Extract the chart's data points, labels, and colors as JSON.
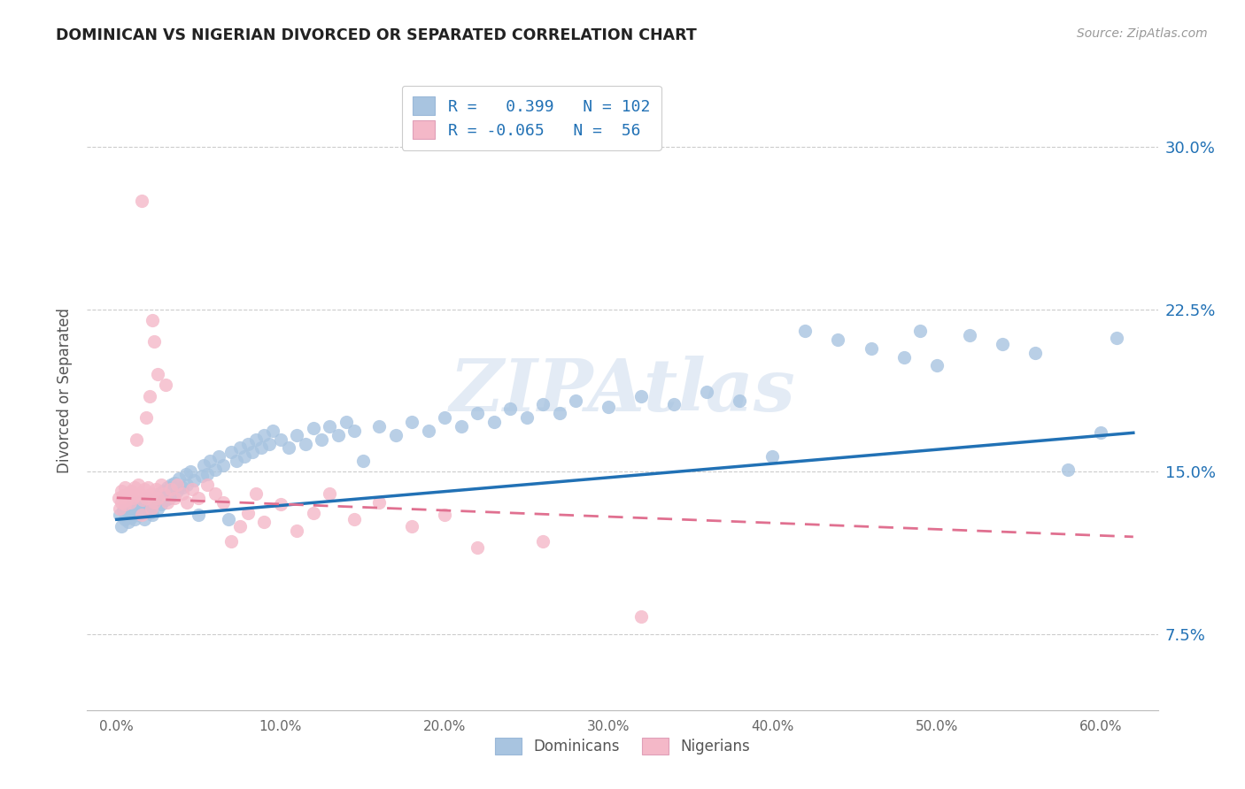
{
  "title": "DOMINICAN VS NIGERIAN DIVORCED OR SEPARATED CORRELATION CHART",
  "source": "Source: ZipAtlas.com",
  "ylabel": "Divorced or Separated",
  "ytick_labels": [
    "7.5%",
    "15.0%",
    "22.5%",
    "30.0%"
  ],
  "ytick_vals": [
    0.075,
    0.15,
    0.225,
    0.3
  ],
  "xtick_labels": [
    "0.0%",
    "10.0%",
    "20.0%",
    "30.0%",
    "40.0%",
    "50.0%",
    "60.0%"
  ],
  "xtick_vals": [
    0.0,
    0.1,
    0.2,
    0.3,
    0.4,
    0.5,
    0.6
  ],
  "xlim": [
    -0.018,
    0.635
  ],
  "ylim": [
    0.04,
    0.335
  ],
  "dominican_color": "#a8c4e0",
  "nigerian_color": "#f4b8c8",
  "trendline_dominican_color": "#2171b5",
  "trendline_nigerian_color": "#e07090",
  "watermark": "ZIPAtlas",
  "dominican_R": 0.399,
  "dominican_N": 102,
  "nigerian_R": -0.065,
  "nigerian_N": 56,
  "dom_x": [
    0.002,
    0.003,
    0.004,
    0.005,
    0.006,
    0.007,
    0.008,
    0.009,
    0.01,
    0.01,
    0.011,
    0.012,
    0.013,
    0.014,
    0.015,
    0.016,
    0.017,
    0.018,
    0.019,
    0.02,
    0.021,
    0.022,
    0.023,
    0.025,
    0.026,
    0.027,
    0.028,
    0.03,
    0.031,
    0.032,
    0.033,
    0.034,
    0.035,
    0.037,
    0.038,
    0.04,
    0.042,
    0.043,
    0.045,
    0.047,
    0.05,
    0.052,
    0.053,
    0.055,
    0.057,
    0.06,
    0.062,
    0.065,
    0.068,
    0.07,
    0.073,
    0.075,
    0.078,
    0.08,
    0.083,
    0.085,
    0.088,
    0.09,
    0.093,
    0.095,
    0.1,
    0.105,
    0.11,
    0.115,
    0.12,
    0.125,
    0.13,
    0.135,
    0.14,
    0.145,
    0.15,
    0.16,
    0.17,
    0.18,
    0.19,
    0.2,
    0.21,
    0.22,
    0.23,
    0.24,
    0.25,
    0.26,
    0.27,
    0.28,
    0.3,
    0.32,
    0.34,
    0.36,
    0.38,
    0.4,
    0.42,
    0.44,
    0.46,
    0.48,
    0.5,
    0.52,
    0.54,
    0.56,
    0.58,
    0.6,
    0.49,
    0.61
  ],
  "dom_y": [
    0.13,
    0.125,
    0.132,
    0.128,
    0.131,
    0.127,
    0.133,
    0.129,
    0.132,
    0.136,
    0.128,
    0.134,
    0.13,
    0.136,
    0.132,
    0.135,
    0.128,
    0.134,
    0.138,
    0.131,
    0.136,
    0.13,
    0.137,
    0.133,
    0.14,
    0.135,
    0.141,
    0.137,
    0.143,
    0.138,
    0.144,
    0.139,
    0.145,
    0.141,
    0.147,
    0.143,
    0.149,
    0.144,
    0.15,
    0.146,
    0.13,
    0.148,
    0.153,
    0.149,
    0.155,
    0.151,
    0.157,
    0.153,
    0.128,
    0.159,
    0.155,
    0.161,
    0.157,
    0.163,
    0.159,
    0.165,
    0.161,
    0.167,
    0.163,
    0.169,
    0.165,
    0.161,
    0.167,
    0.163,
    0.17,
    0.165,
    0.171,
    0.167,
    0.173,
    0.169,
    0.155,
    0.171,
    0.167,
    0.173,
    0.169,
    0.175,
    0.171,
    0.177,
    0.173,
    0.179,
    0.175,
    0.181,
    0.177,
    0.183,
    0.18,
    0.185,
    0.181,
    0.187,
    0.183,
    0.157,
    0.215,
    0.211,
    0.207,
    0.203,
    0.199,
    0.213,
    0.209,
    0.205,
    0.151,
    0.168,
    0.215,
    0.212
  ],
  "nig_x": [
    0.001,
    0.002,
    0.003,
    0.003,
    0.004,
    0.005,
    0.005,
    0.006,
    0.007,
    0.008,
    0.009,
    0.01,
    0.011,
    0.012,
    0.013,
    0.014,
    0.015,
    0.016,
    0.017,
    0.018,
    0.019,
    0.02,
    0.021,
    0.022,
    0.023,
    0.024,
    0.025,
    0.027,
    0.029,
    0.031,
    0.033,
    0.035,
    0.037,
    0.04,
    0.043,
    0.046,
    0.05,
    0.055,
    0.06,
    0.065,
    0.07,
    0.075,
    0.08,
    0.085,
    0.09,
    0.1,
    0.11,
    0.12,
    0.13,
    0.145,
    0.16,
    0.18,
    0.2,
    0.22,
    0.26,
    0.32
  ],
  "nig_y": [
    0.138,
    0.133,
    0.136,
    0.141,
    0.139,
    0.135,
    0.143,
    0.137,
    0.14,
    0.136,
    0.141,
    0.138,
    0.143,
    0.139,
    0.144,
    0.14,
    0.13,
    0.137,
    0.142,
    0.138,
    0.143,
    0.139,
    0.133,
    0.14,
    0.136,
    0.142,
    0.138,
    0.144,
    0.14,
    0.136,
    0.142,
    0.138,
    0.144,
    0.14,
    0.136,
    0.142,
    0.138,
    0.144,
    0.14,
    0.136,
    0.118,
    0.125,
    0.131,
    0.14,
    0.127,
    0.135,
    0.123,
    0.131,
    0.14,
    0.128,
    0.136,
    0.125,
    0.13,
    0.115,
    0.118,
    0.083
  ],
  "nig_outliers_x": [
    0.015,
    0.022,
    0.023,
    0.03,
    0.02,
    0.025,
    0.012,
    0.018
  ],
  "nig_outliers_y": [
    0.275,
    0.22,
    0.21,
    0.19,
    0.185,
    0.195,
    0.165,
    0.175
  ],
  "dom_trendline_x0": 0.0,
  "dom_trendline_y0": 0.128,
  "dom_trendline_x1": 0.62,
  "dom_trendline_y1": 0.168,
  "nig_trendline_x0": 0.0,
  "nig_trendline_y0": 0.138,
  "nig_trendline_x1": 0.62,
  "nig_trendline_y1": 0.12
}
